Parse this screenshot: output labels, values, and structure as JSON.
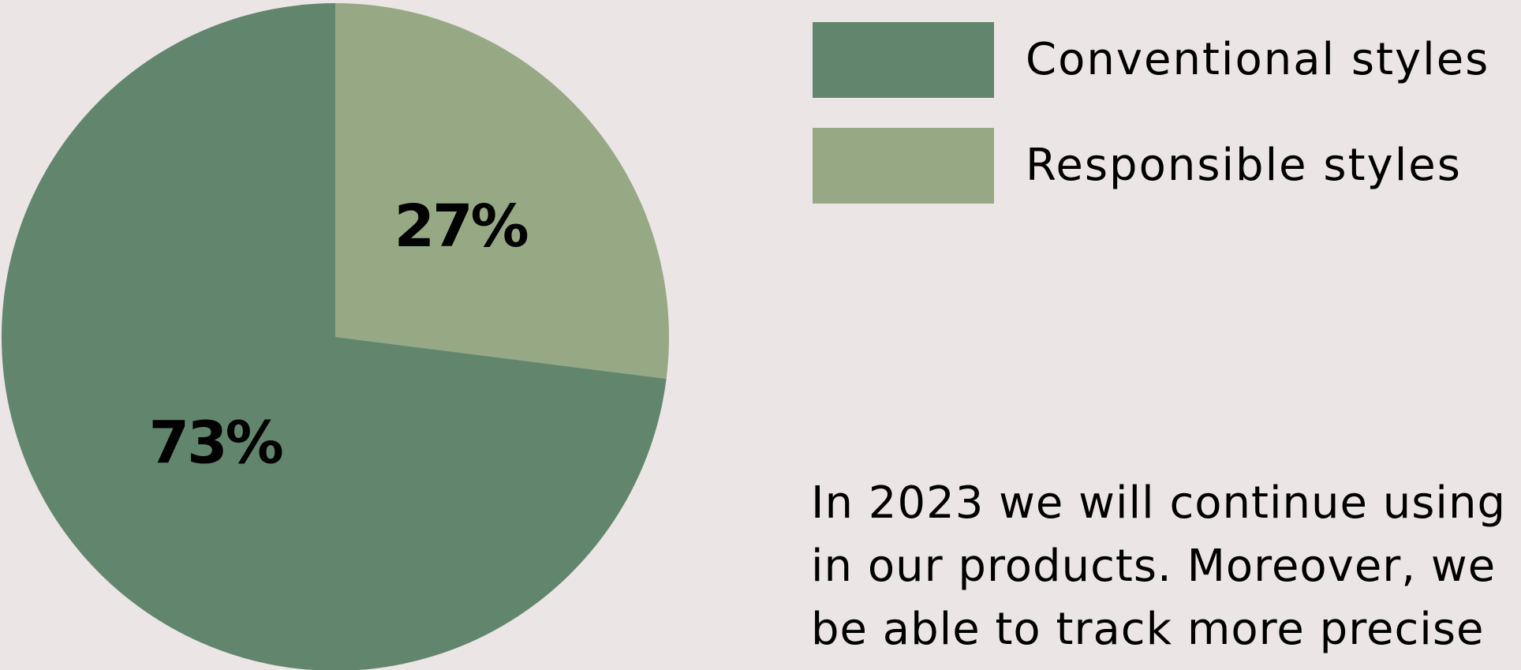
{
  "chart_data": {
    "type": "pie",
    "title": "",
    "slices": [
      {
        "name": "Conventional styles",
        "value": 73,
        "label": "73%",
        "color": "#62866d"
      },
      {
        "name": "Responsible styles",
        "value": 27,
        "label": "27%",
        "color": "#96a984"
      }
    ],
    "legend_position": "top-right"
  },
  "legend": {
    "items": [
      {
        "label": "Conventional styles",
        "color": "#62866d"
      },
      {
        "label": "Responsible styles",
        "color": "#96a984"
      }
    ]
  },
  "note": {
    "lines": [
      "In 2023 we will continue using",
      "in our products. Moreover, we",
      "be able to track more precise"
    ]
  },
  "colors": {
    "background": "#ebe5e5"
  }
}
